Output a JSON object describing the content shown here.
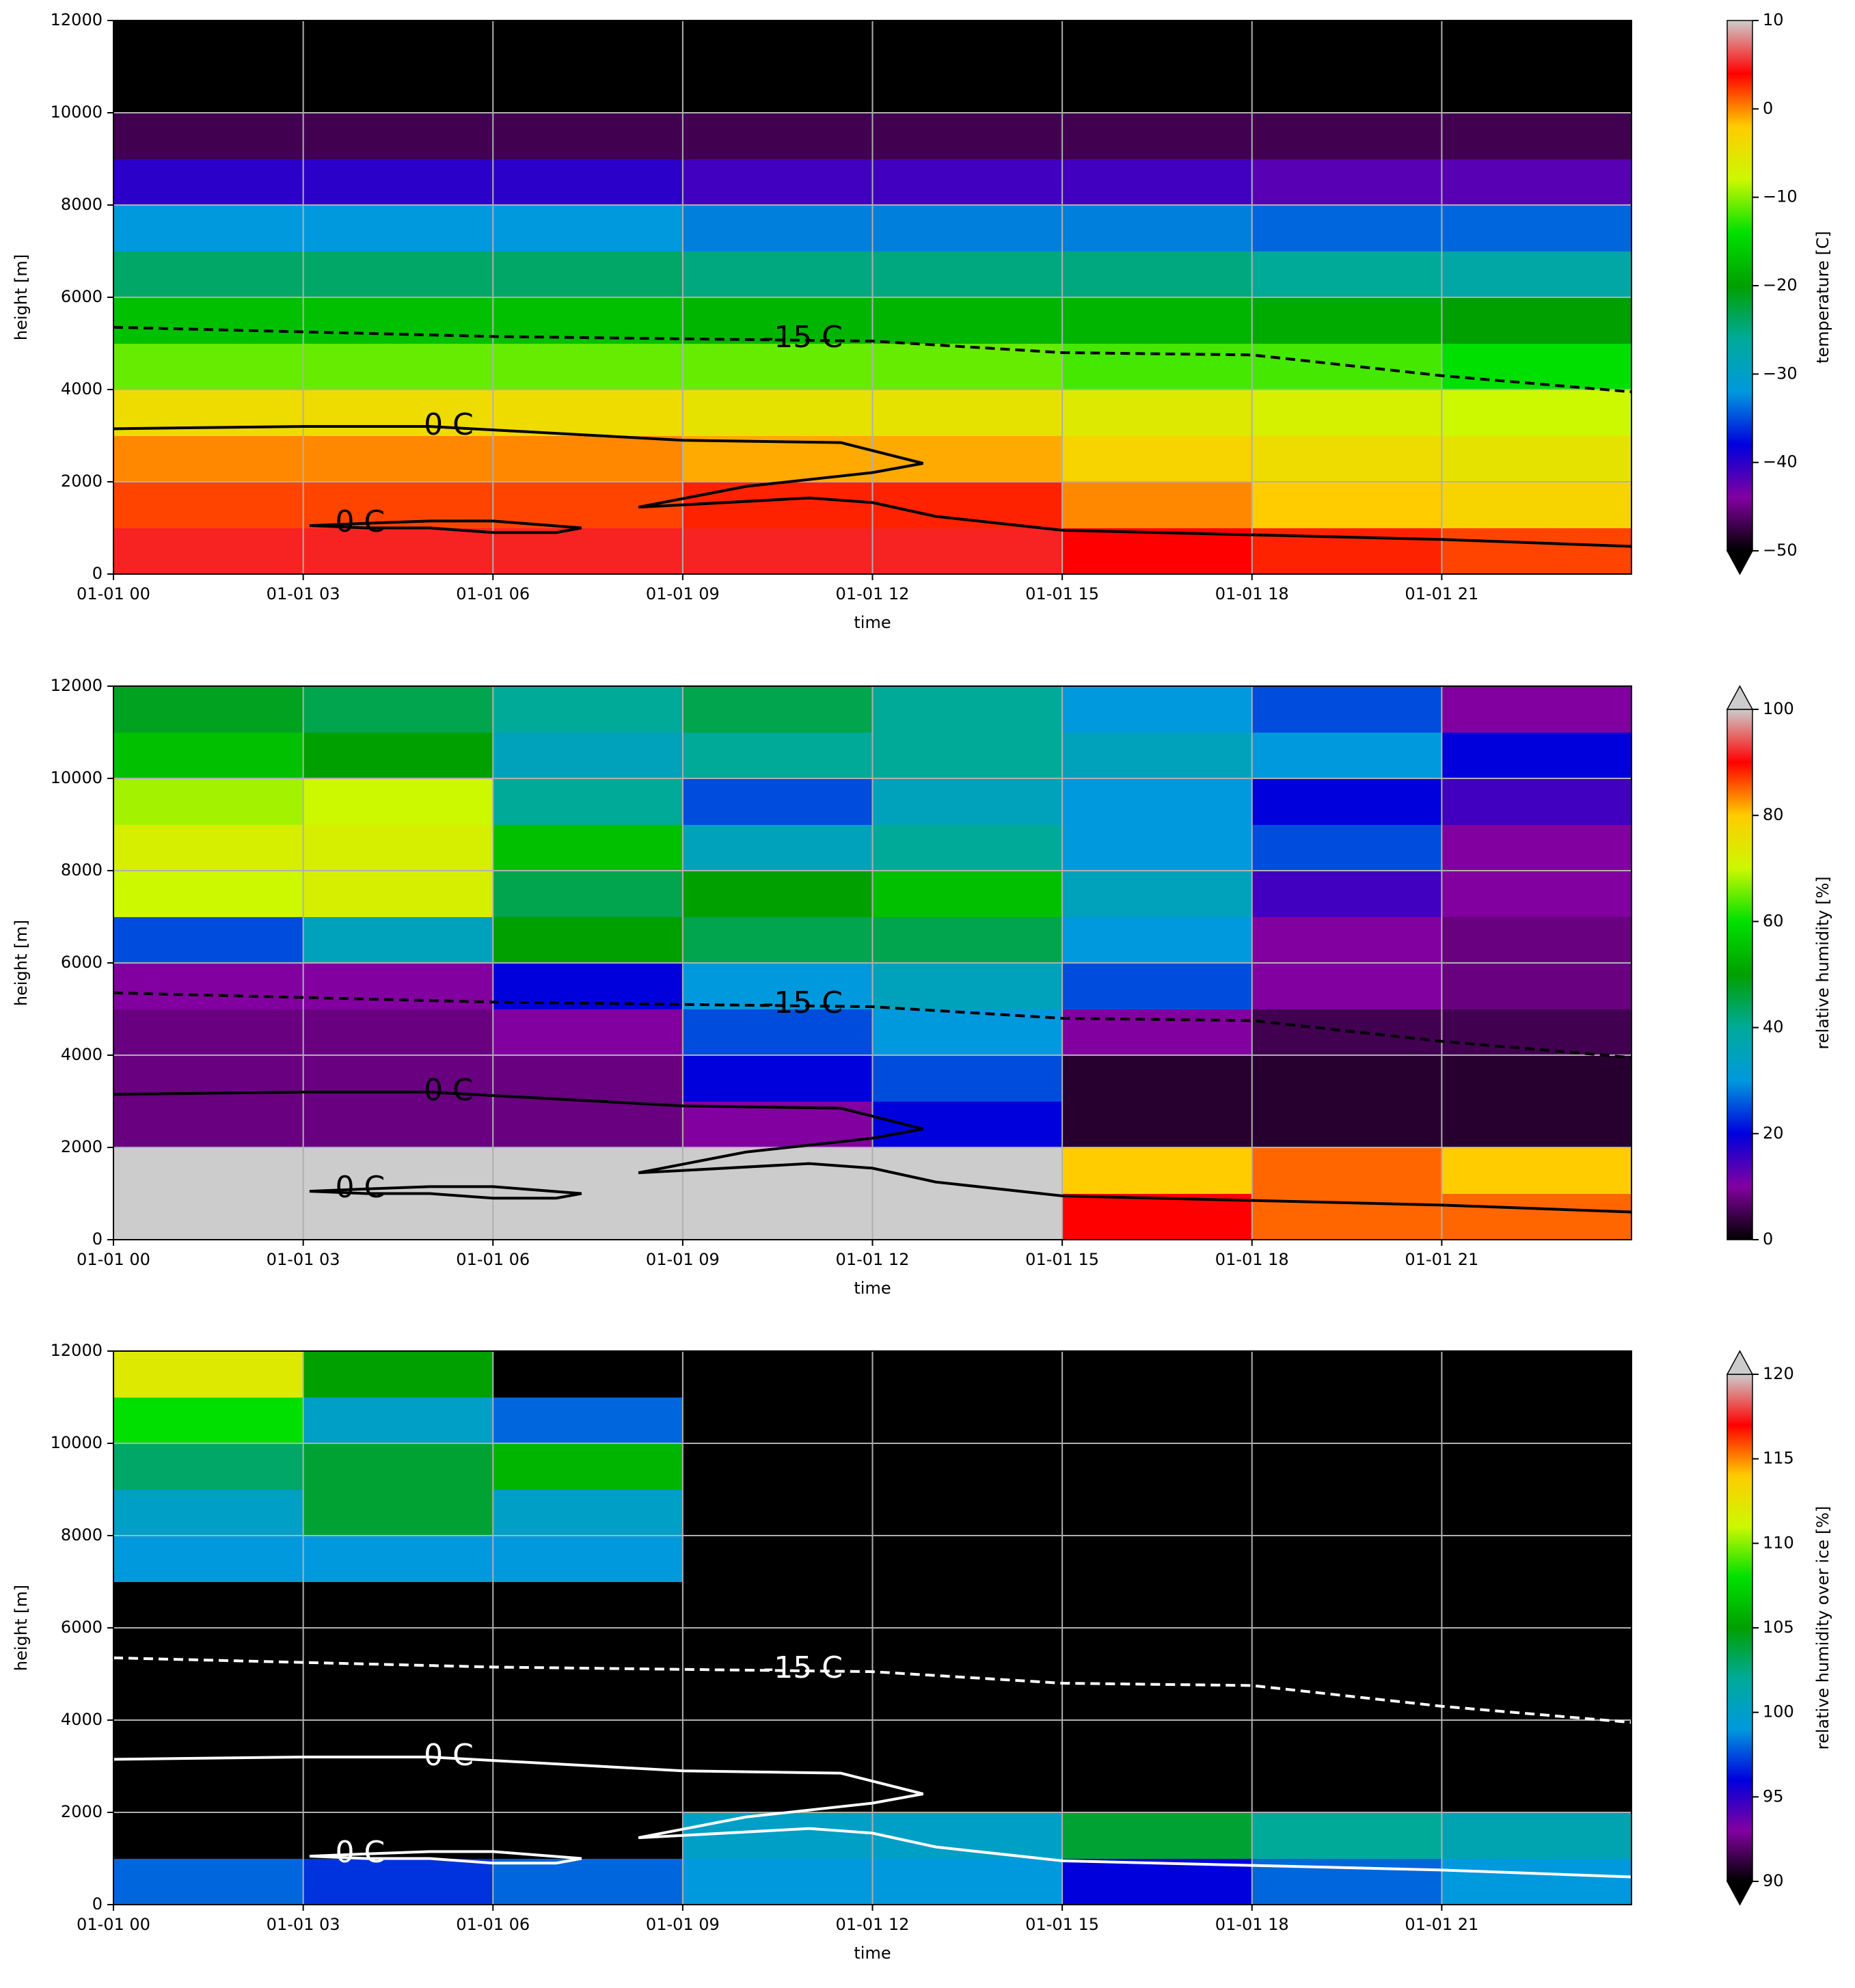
{
  "contours": [
    {
      "label": "-15 C",
      "dashed": true,
      "x": [
        0,
        3,
        6,
        9,
        12,
        15,
        18,
        21,
        24
      ],
      "y": [
        5350,
        5250,
        5150,
        5100,
        5050,
        4800,
        4750,
        4300,
        3950
      ]
    },
    {
      "label": "0 C",
      "dashed": false,
      "x": [
        0,
        3,
        5,
        7,
        9,
        11.5,
        12.8,
        12,
        10,
        8.3,
        9,
        11,
        12,
        13,
        15,
        18,
        21,
        24
      ],
      "y": [
        3150,
        3200,
        3200,
        3050,
        2900,
        2850,
        2400,
        2200,
        1900,
        1450,
        1500,
        1650,
        1550,
        1250,
        950,
        850,
        750,
        600
      ]
    },
    {
      "label": "0 C",
      "dashed": false,
      "x": [
        3.1,
        4,
        5,
        6,
        7.4,
        7,
        6,
        5,
        4,
        3.1
      ],
      "y": [
        1050,
        1100,
        1150,
        1150,
        1000,
        900,
        900,
        1000,
        1000,
        1050
      ]
    }
  ],
  "cmap": [
    "#000000",
    "#8200a0",
    "#0000dd",
    "#0099dd",
    "#00aa99",
    "#00a000",
    "#00e000",
    "#ccf800",
    "#ffcc00",
    "#ff0000",
    "#cccccc"
  ],
  "chart_data": [
    {
      "type": "heatmap",
      "xlabel": "time",
      "ylabel": "height [m]",
      "contour_color": "#000000",
      "xlim": [
        0,
        24
      ],
      "xticks": [
        {
          "value": 0,
          "label": "01-01 00"
        },
        {
          "value": 3,
          "label": "01-01 03"
        },
        {
          "value": 6,
          "label": "01-01 06"
        },
        {
          "value": 9,
          "label": "01-01 09"
        },
        {
          "value": 12,
          "label": "01-01 12"
        },
        {
          "value": 15,
          "label": "01-01 15"
        },
        {
          "value": 18,
          "label": "01-01 18"
        },
        {
          "value": 21,
          "label": "01-01 21"
        }
      ],
      "ylim": [
        0,
        12000
      ],
      "yticks": [
        0,
        2000,
        4000,
        6000,
        8000,
        10000,
        12000
      ],
      "grid": true,
      "x_edges": [
        0,
        3,
        6,
        9,
        12,
        15,
        18,
        21,
        24
      ],
      "y_edges": [
        0,
        1000,
        2000,
        3000,
        4000,
        5000,
        6000,
        7000,
        8000,
        9000,
        10000,
        11000,
        12000
      ],
      "z": [
        [
          5,
          5,
          5,
          5,
          5,
          4,
          3,
          2
        ],
        [
          2,
          2,
          2,
          3,
          3,
          0,
          -2,
          -3
        ],
        [
          0,
          0,
          0,
          -1,
          -1,
          -3,
          -4,
          -5
        ],
        [
          -4,
          -4,
          -4,
          -5,
          -5,
          -6,
          -7,
          -8
        ],
        [
          -11,
          -11,
          -11,
          -11,
          -11,
          -12,
          -12,
          -14
        ],
        [
          -17,
          -17,
          -17,
          -18,
          -18,
          -18,
          -19,
          -20
        ],
        [
          -24,
          -24,
          -24,
          -25,
          -25,
          -25,
          -26,
          -27
        ],
        [
          -32,
          -32,
          -32,
          -33,
          -33,
          -33,
          -34,
          -34
        ],
        [
          -40,
          -40,
          -40,
          -41,
          -41,
          -41,
          -42,
          -42
        ],
        [
          -47,
          -47,
          -47,
          -47,
          -47,
          -47,
          -47,
          -47
        ],
        [
          -55,
          -55,
          -55,
          -55,
          -55,
          -55,
          -55,
          -55
        ],
        [
          -55,
          -55,
          -55,
          -55,
          -55,
          -55,
          -55,
          -55
        ]
      ],
      "colorbar": {
        "label": "temperature [C]",
        "lim": [
          -50,
          10
        ],
        "extend": "min",
        "ticks": [
          {
            "value": -50,
            "label": "−50"
          },
          {
            "value": -40,
            "label": "−40"
          },
          {
            "value": -30,
            "label": "−30"
          },
          {
            "value": -20,
            "label": "−20"
          },
          {
            "value": -10,
            "label": "−10"
          },
          0,
          10
        ]
      }
    },
    {
      "type": "heatmap",
      "xlabel": "time",
      "ylabel": "height [m]",
      "contour_color": "#000000",
      "xlim": [
        0,
        24
      ],
      "xticks": [
        {
          "value": 0,
          "label": "01-01 00"
        },
        {
          "value": 3,
          "label": "01-01 03"
        },
        {
          "value": 6,
          "label": "01-01 06"
        },
        {
          "value": 9,
          "label": "01-01 09"
        },
        {
          "value": 12,
          "label": "01-01 12"
        },
        {
          "value": 15,
          "label": "01-01 15"
        },
        {
          "value": 18,
          "label": "01-01 18"
        },
        {
          "value": 21,
          "label": "01-01 21"
        }
      ],
      "ylim": [
        0,
        12000
      ],
      "yticks": [
        0,
        2000,
        4000,
        6000,
        8000,
        10000,
        12000
      ],
      "grid": true,
      "x_edges": [
        0,
        3,
        6,
        9,
        12,
        15,
        18,
        21,
        24
      ],
      "y_edges": [
        0,
        1000,
        2000,
        3000,
        4000,
        5000,
        6000,
        7000,
        8000,
        9000,
        10000,
        11000,
        12000
      ],
      "z": [
        [
          101,
          101,
          101,
          101,
          101,
          90,
          85,
          85
        ],
        [
          101,
          101,
          101,
          101,
          101,
          80,
          85,
          80
        ],
        [
          8,
          8,
          8,
          10,
          20,
          3,
          3,
          3
        ],
        [
          8,
          8,
          8,
          20,
          25,
          3,
          3,
          3
        ],
        [
          8,
          8,
          10,
          25,
          30,
          10,
          5,
          5
        ],
        [
          10,
          10,
          20,
          30,
          35,
          25,
          10,
          8
        ],
        [
          25,
          35,
          50,
          45,
          45,
          30,
          10,
          8
        ],
        [
          70,
          72,
          45,
          50,
          55,
          35,
          15,
          10
        ],
        [
          72,
          72,
          55,
          35,
          40,
          30,
          25,
          10
        ],
        [
          68,
          70,
          40,
          25,
          35,
          30,
          20,
          15
        ],
        [
          55,
          50,
          35,
          40,
          40,
          35,
          30,
          20
        ],
        [
          48,
          45,
          40,
          45,
          40,
          30,
          25,
          10
        ]
      ],
      "colorbar": {
        "label": "relative humidity [%]",
        "lim": [
          0,
          100
        ],
        "extend": "max",
        "ticks": [
          0,
          20,
          40,
          60,
          80,
          100
        ]
      }
    },
    {
      "type": "heatmap",
      "xlabel": "time",
      "ylabel": "height [m]",
      "contour_color": "#ffffff",
      "xlim": [
        0,
        24
      ],
      "xticks": [
        {
          "value": 0,
          "label": "01-01 00"
        },
        {
          "value": 3,
          "label": "01-01 03"
        },
        {
          "value": 6,
          "label": "01-01 06"
        },
        {
          "value": 9,
          "label": "01-01 09"
        },
        {
          "value": 12,
          "label": "01-01 12"
        },
        {
          "value": 15,
          "label": "01-01 15"
        },
        {
          "value": 18,
          "label": "01-01 18"
        },
        {
          "value": 21,
          "label": "01-01 21"
        }
      ],
      "ylim": [
        0,
        12000
      ],
      "yticks": [
        0,
        2000,
        4000,
        6000,
        8000,
        10000,
        12000
      ],
      "grid": true,
      "x_edges": [
        0,
        3,
        6,
        9,
        12,
        15,
        18,
        21,
        24
      ],
      "y_edges": [
        0,
        1000,
        2000,
        3000,
        4000,
        5000,
        6000,
        7000,
        8000,
        9000,
        10000,
        11000,
        12000
      ],
      "z": [
        [
          98,
          97,
          98,
          99,
          99,
          96,
          98,
          99
        ],
        [
          80,
          80,
          80,
          100,
          100,
          104,
          102,
          101
        ],
        [
          80,
          80,
          80,
          80,
          80,
          80,
          80,
          80
        ],
        [
          80,
          80,
          80,
          80,
          80,
          80,
          80,
          80
        ],
        [
          80,
          80,
          80,
          80,
          80,
          80,
          80,
          80
        ],
        [
          80,
          80,
          80,
          80,
          80,
          80,
          80,
          80
        ],
        [
          80,
          80,
          80,
          80,
          80,
          80,
          80,
          80
        ],
        [
          99,
          99,
          99,
          80,
          80,
          80,
          80,
          80
        ],
        [
          100,
          104,
          100,
          80,
          80,
          80,
          80,
          80
        ],
        [
          103,
          104,
          106,
          80,
          80,
          80,
          80,
          80
        ],
        [
          108,
          100,
          98,
          80,
          80,
          80,
          80,
          80
        ],
        [
          112,
          105,
          80,
          80,
          80,
          80,
          80,
          80
        ]
      ],
      "colorbar": {
        "label": "relative humidity over ice [%]",
        "lim": [
          90,
          120
        ],
        "extend": "both",
        "ticks": [
          90,
          95,
          100,
          105,
          110,
          115,
          120
        ]
      }
    }
  ]
}
